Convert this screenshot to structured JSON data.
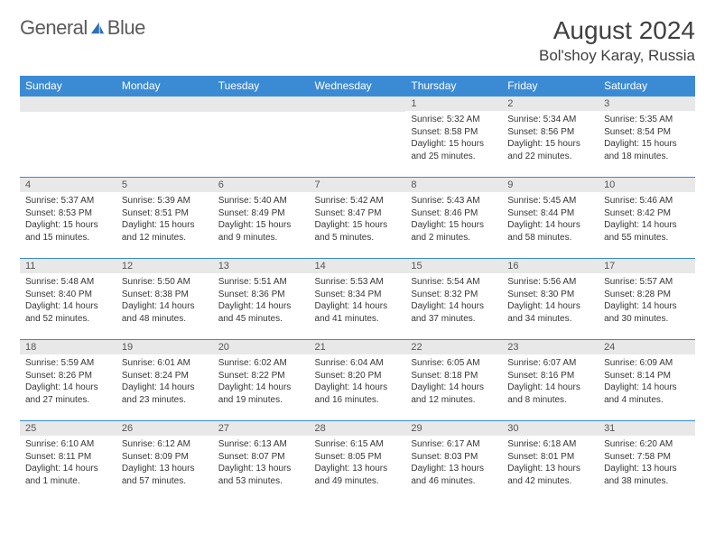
{
  "logo": {
    "text1": "General",
    "text2": "Blue"
  },
  "title": "August 2024",
  "location": "Bol'shoy Karay, Russia",
  "dayHeaders": [
    "Sunday",
    "Monday",
    "Tuesday",
    "Wednesday",
    "Thursday",
    "Friday",
    "Saturday"
  ],
  "colors": {
    "headerBg": "#3b8bd4",
    "dayBg": "#e8e8e8",
    "ruleColor": "#3b8bd4"
  },
  "weeks": [
    [
      null,
      null,
      null,
      null,
      {
        "n": "1",
        "sr": "5:32 AM",
        "ss": "8:58 PM",
        "dl": "15 hours and 25 minutes."
      },
      {
        "n": "2",
        "sr": "5:34 AM",
        "ss": "8:56 PM",
        "dl": "15 hours and 22 minutes."
      },
      {
        "n": "3",
        "sr": "5:35 AM",
        "ss": "8:54 PM",
        "dl": "15 hours and 18 minutes."
      }
    ],
    [
      {
        "n": "4",
        "sr": "5:37 AM",
        "ss": "8:53 PM",
        "dl": "15 hours and 15 minutes."
      },
      {
        "n": "5",
        "sr": "5:39 AM",
        "ss": "8:51 PM",
        "dl": "15 hours and 12 minutes."
      },
      {
        "n": "6",
        "sr": "5:40 AM",
        "ss": "8:49 PM",
        "dl": "15 hours and 9 minutes."
      },
      {
        "n": "7",
        "sr": "5:42 AM",
        "ss": "8:47 PM",
        "dl": "15 hours and 5 minutes."
      },
      {
        "n": "8",
        "sr": "5:43 AM",
        "ss": "8:46 PM",
        "dl": "15 hours and 2 minutes."
      },
      {
        "n": "9",
        "sr": "5:45 AM",
        "ss": "8:44 PM",
        "dl": "14 hours and 58 minutes."
      },
      {
        "n": "10",
        "sr": "5:46 AM",
        "ss": "8:42 PM",
        "dl": "14 hours and 55 minutes."
      }
    ],
    [
      {
        "n": "11",
        "sr": "5:48 AM",
        "ss": "8:40 PM",
        "dl": "14 hours and 52 minutes."
      },
      {
        "n": "12",
        "sr": "5:50 AM",
        "ss": "8:38 PM",
        "dl": "14 hours and 48 minutes."
      },
      {
        "n": "13",
        "sr": "5:51 AM",
        "ss": "8:36 PM",
        "dl": "14 hours and 45 minutes."
      },
      {
        "n": "14",
        "sr": "5:53 AM",
        "ss": "8:34 PM",
        "dl": "14 hours and 41 minutes."
      },
      {
        "n": "15",
        "sr": "5:54 AM",
        "ss": "8:32 PM",
        "dl": "14 hours and 37 minutes."
      },
      {
        "n": "16",
        "sr": "5:56 AM",
        "ss": "8:30 PM",
        "dl": "14 hours and 34 minutes."
      },
      {
        "n": "17",
        "sr": "5:57 AM",
        "ss": "8:28 PM",
        "dl": "14 hours and 30 minutes."
      }
    ],
    [
      {
        "n": "18",
        "sr": "5:59 AM",
        "ss": "8:26 PM",
        "dl": "14 hours and 27 minutes."
      },
      {
        "n": "19",
        "sr": "6:01 AM",
        "ss": "8:24 PM",
        "dl": "14 hours and 23 minutes."
      },
      {
        "n": "20",
        "sr": "6:02 AM",
        "ss": "8:22 PM",
        "dl": "14 hours and 19 minutes."
      },
      {
        "n": "21",
        "sr": "6:04 AM",
        "ss": "8:20 PM",
        "dl": "14 hours and 16 minutes."
      },
      {
        "n": "22",
        "sr": "6:05 AM",
        "ss": "8:18 PM",
        "dl": "14 hours and 12 minutes."
      },
      {
        "n": "23",
        "sr": "6:07 AM",
        "ss": "8:16 PM",
        "dl": "14 hours and 8 minutes."
      },
      {
        "n": "24",
        "sr": "6:09 AM",
        "ss": "8:14 PM",
        "dl": "14 hours and 4 minutes."
      }
    ],
    [
      {
        "n": "25",
        "sr": "6:10 AM",
        "ss": "8:11 PM",
        "dl": "14 hours and 1 minute."
      },
      {
        "n": "26",
        "sr": "6:12 AM",
        "ss": "8:09 PM",
        "dl": "13 hours and 57 minutes."
      },
      {
        "n": "27",
        "sr": "6:13 AM",
        "ss": "8:07 PM",
        "dl": "13 hours and 53 minutes."
      },
      {
        "n": "28",
        "sr": "6:15 AM",
        "ss": "8:05 PM",
        "dl": "13 hours and 49 minutes."
      },
      {
        "n": "29",
        "sr": "6:17 AM",
        "ss": "8:03 PM",
        "dl": "13 hours and 46 minutes."
      },
      {
        "n": "30",
        "sr": "6:18 AM",
        "ss": "8:01 PM",
        "dl": "13 hours and 42 minutes."
      },
      {
        "n": "31",
        "sr": "6:20 AM",
        "ss": "7:58 PM",
        "dl": "13 hours and 38 minutes."
      }
    ]
  ],
  "labels": {
    "sunrise": "Sunrise:",
    "sunset": "Sunset:",
    "daylight": "Daylight:"
  }
}
